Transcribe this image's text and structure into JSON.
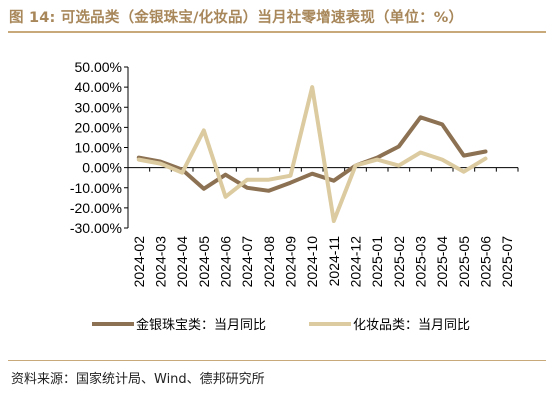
{
  "title": "图 14: 可选品类（金银珠宝/化妆品）当月社零增速表现（单位：%）",
  "source": "资料来源：国家统计局、Wind、德邦研究所",
  "colors": {
    "accent": "#c7a97a",
    "title": "#a8875a",
    "series_jewelry": "#8c7152",
    "series_cosmetics": "#dccba0"
  },
  "chart_data": {
    "type": "line",
    "title": "",
    "xlabel": "",
    "ylabel": "",
    "ylim": [
      -30,
      50
    ],
    "y_ticks": [
      50,
      40,
      30,
      20,
      10,
      0,
      -10,
      -20,
      -30
    ],
    "y_tick_labels": [
      "50.00%",
      "40.00%",
      "30.00%",
      "20.00%",
      "10.00%",
      "0.00%",
      "-10.00%",
      "-20.00%",
      "-30.00%"
    ],
    "x": [
      "2024-02",
      "2024-03",
      "2024-04",
      "2024-05",
      "2024-06",
      "2024-07",
      "2024-08",
      "2024-09",
      "2024-10",
      "2024-11",
      "2024-12",
      "2025-01",
      "2025-02",
      "2025-03",
      "2025-04",
      "2025-05",
      "2025-06",
      "2025-07"
    ],
    "grid": false,
    "legend_position": "bottom",
    "series": [
      {
        "name": "金银珠宝类：当月同比",
        "color": "#8c7152",
        "values": [
          5.0,
          3.0,
          -1.0,
          -10.5,
          -3.5,
          -10.0,
          -11.5,
          -7.5,
          -3.0,
          -6.5,
          1.0,
          5.0,
          10.5,
          25.0,
          21.5,
          6.0,
          8.0,
          null
        ]
      },
      {
        "name": "化妆品类：当月同比",
        "color": "#dccba0",
        "values": [
          4.0,
          2.0,
          -2.5,
          18.5,
          -14.5,
          -6.0,
          -6.0,
          -4.0,
          40.0,
          -26.5,
          1.0,
          4.0,
          1.0,
          7.5,
          4.0,
          -2.0,
          4.5,
          null
        ]
      }
    ]
  }
}
